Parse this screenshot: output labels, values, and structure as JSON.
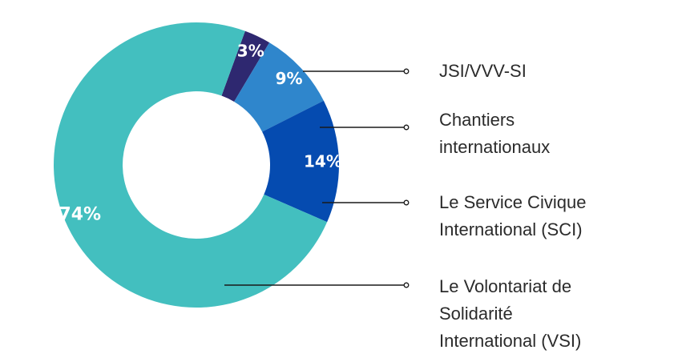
{
  "chart_data": {
    "type": "pie",
    "variant": "donut",
    "categories": [
      "JSI/VVV-SI",
      "Chantiers internationaux",
      "Le Service Civique International (SCI)",
      "Le Volontariat de Solidarité International (VSI)"
    ],
    "values": [
      3,
      9,
      14,
      74
    ],
    "value_labels": [
      "3%",
      "9%",
      "14%",
      "74%"
    ],
    "legend_lines": [
      [
        "JSI/VVV-SI"
      ],
      [
        "Chantiers",
        "internationaux"
      ],
      [
        "Le Service Civique",
        "International (SCI)"
      ],
      [
        "Le Volontariat de",
        "Solidarité",
        "International (VSI)"
      ]
    ],
    "colors": [
      "#2e2870",
      "#2f86cc",
      "#054bb0",
      "#43bfbf"
    ],
    "label_color": "#ffffff",
    "legend_placement": "right"
  }
}
